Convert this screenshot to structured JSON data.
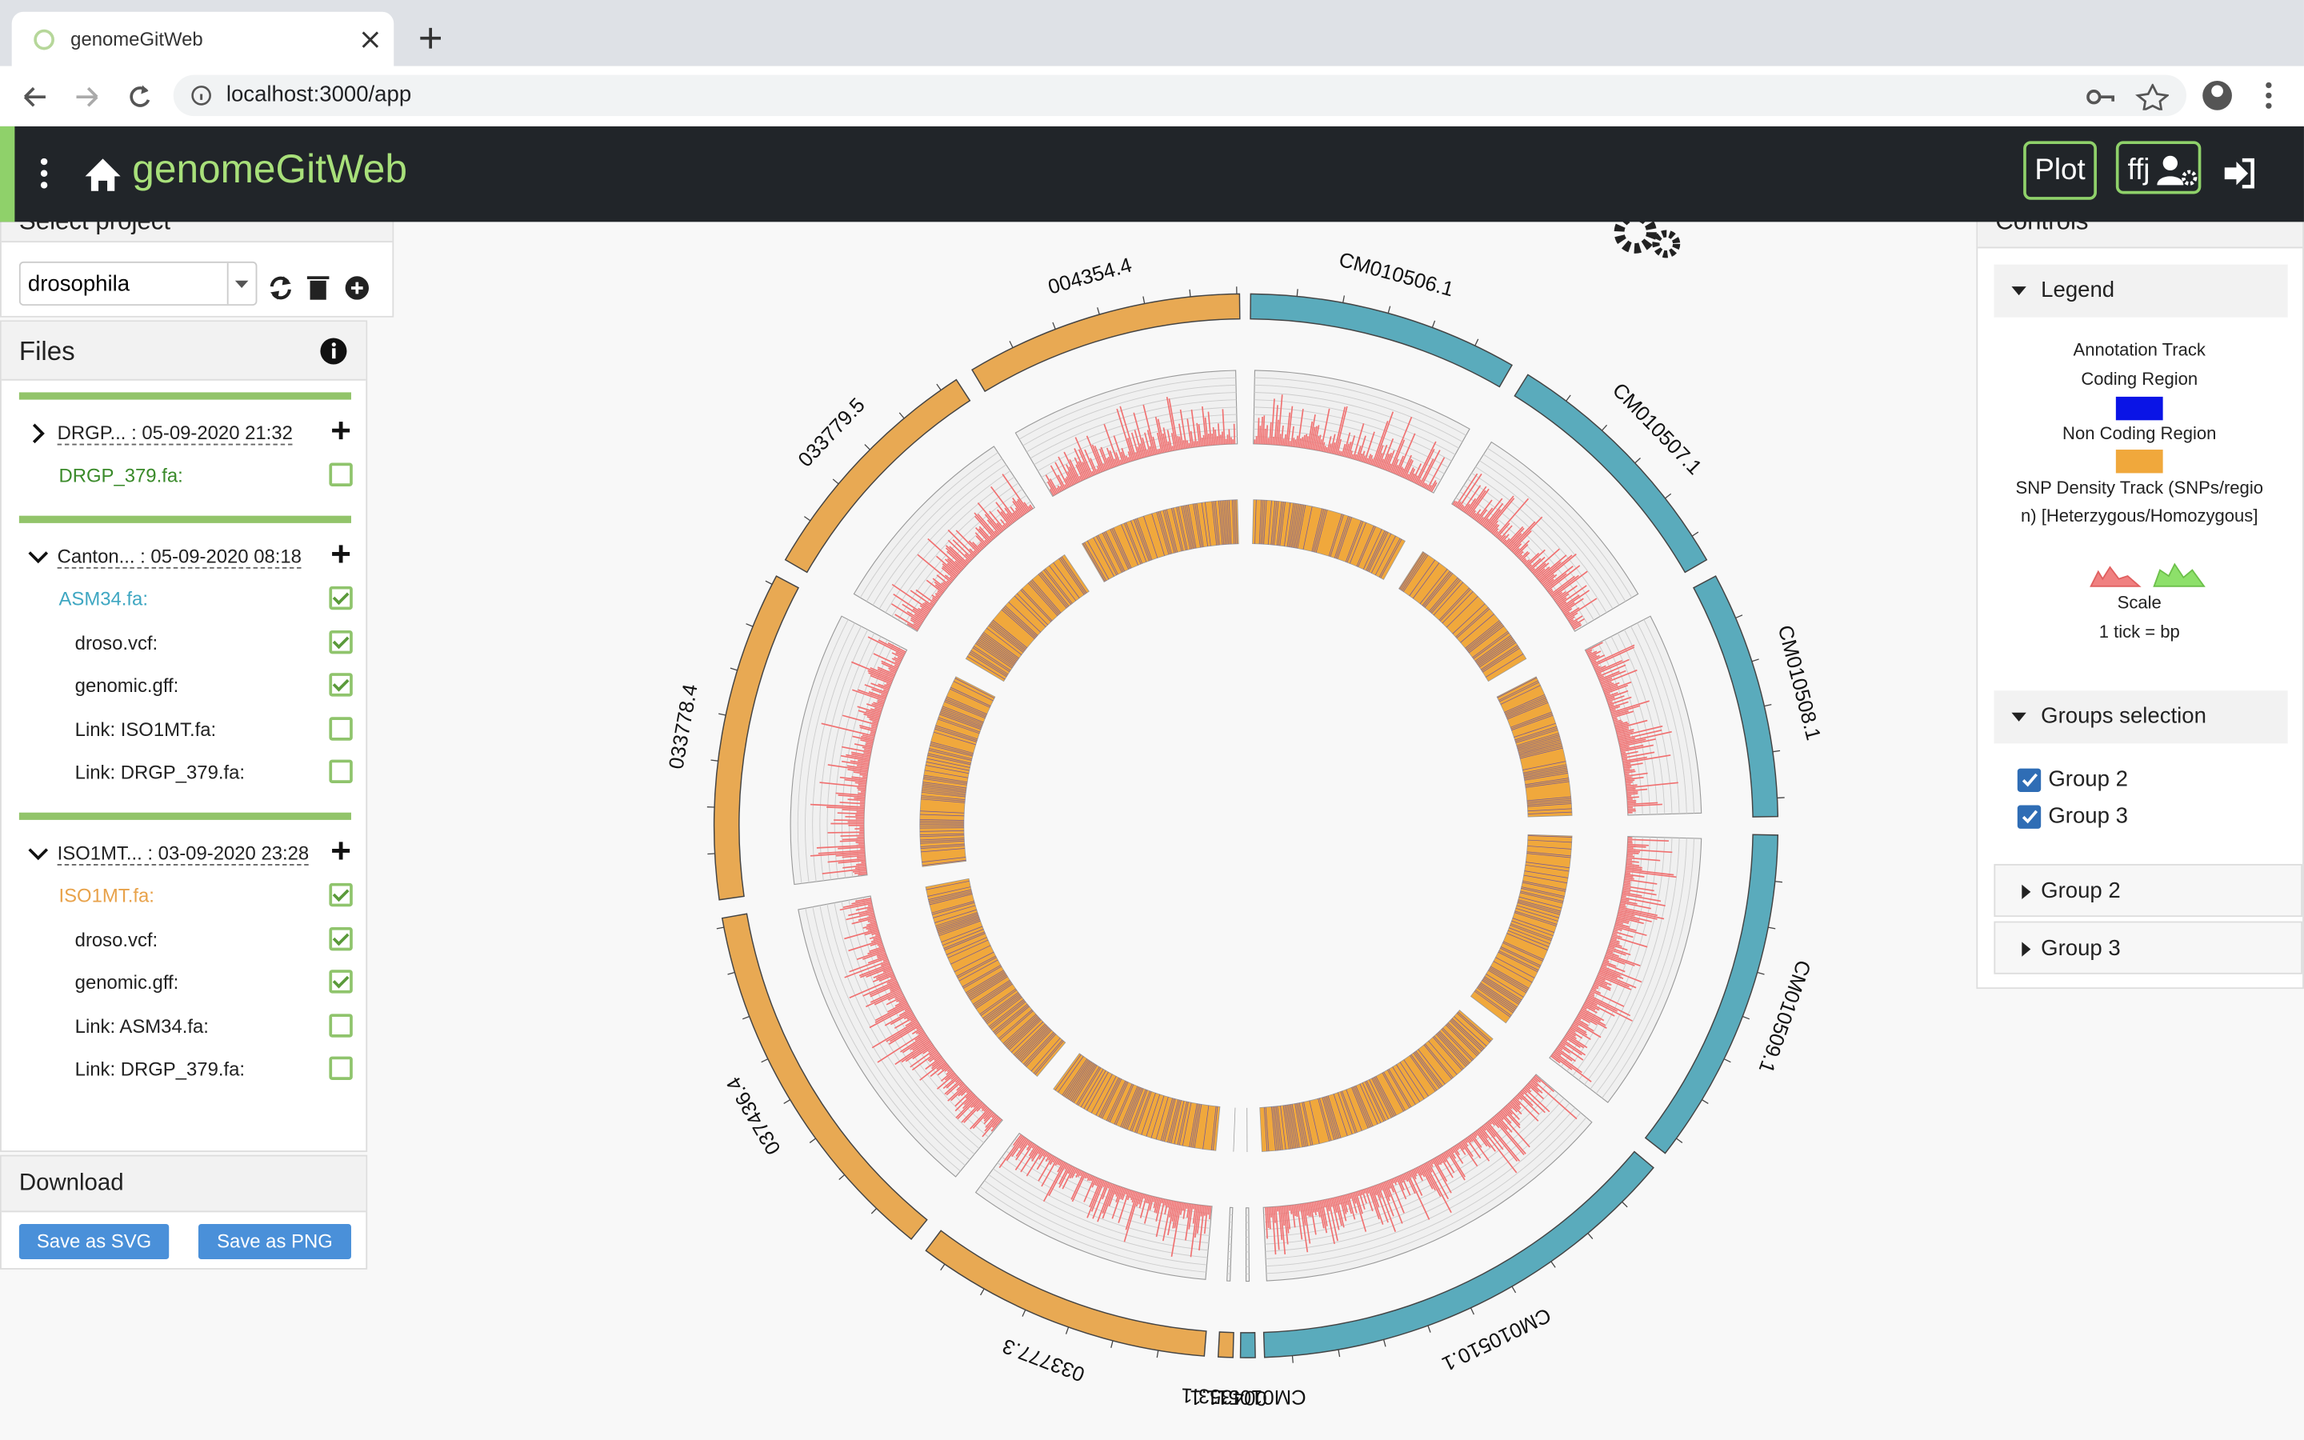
{
  "browser": {
    "tab_title": "genomeGitWeb",
    "url": "localhost:3000/app"
  },
  "app": {
    "title": "genomeGitWeb",
    "plot_button": "Plot",
    "user_button": "ffj"
  },
  "project": {
    "label": "Select project",
    "value": "drosophila"
  },
  "files": {
    "title": "Files",
    "groups": [
      {
        "header": "DRGP... : 05-09-2020 21:32",
        "expanded": false,
        "items": [
          {
            "label": "DRGP_379.fa:",
            "checked": false,
            "kind": "genome",
            "color": "#3a8a2a"
          }
        ]
      },
      {
        "header": "Canton... : 05-09-2020 08:18",
        "expanded": true,
        "items": [
          {
            "label": "ASM34.fa:",
            "checked": true,
            "kind": "genome",
            "color": "#3fa7c2"
          },
          {
            "label": "droso.vcf:",
            "checked": true,
            "kind": "file"
          },
          {
            "label": "genomic.gff:",
            "checked": true,
            "kind": "file"
          },
          {
            "label": "Link: ISO1MT.fa:",
            "checked": false,
            "kind": "file"
          },
          {
            "label": "Link: DRGP_379.fa:",
            "checked": false,
            "kind": "file"
          }
        ]
      },
      {
        "header": "ISO1MT... : 03-09-2020 23:28",
        "expanded": true,
        "items": [
          {
            "label": "ISO1MT.fa:",
            "checked": true,
            "kind": "genome",
            "color": "#e8a24a"
          },
          {
            "label": "droso.vcf:",
            "checked": true,
            "kind": "file"
          },
          {
            "label": "genomic.gff:",
            "checked": true,
            "kind": "file"
          },
          {
            "label": "Link: ASM34.fa:",
            "checked": false,
            "kind": "file"
          },
          {
            "label": "Link: DRGP_379.fa:",
            "checked": false,
            "kind": "file"
          }
        ]
      }
    ]
  },
  "download": {
    "title": "Download",
    "buttons": [
      "Save as SVG",
      "Save as PNG"
    ]
  },
  "plot": {
    "chromosomes": [
      {
        "label": "CM010506.1",
        "color": "#5aabbc"
      },
      {
        "label": "CM010507.1",
        "color": "#5aabbc"
      },
      {
        "label": "CM010508.1",
        "color": "#5aabbc"
      },
      {
        "label": "CM010509.1",
        "color": "#5aabbc"
      },
      {
        "label": "CM010510.1",
        "color": "#5aabbc"
      },
      {
        "label": "CM010511.1",
        "color": "#5aabbc"
      },
      {
        "label": "004353.1",
        "color": "#e8a953"
      },
      {
        "label": "033777.3",
        "color": "#e8a953"
      },
      {
        "label": "037436.4",
        "color": "#e8a953"
      },
      {
        "label": "033778.4",
        "color": "#e8a953"
      },
      {
        "label": "033779.5",
        "color": "#e8a953"
      },
      {
        "label": "004354.4",
        "color": "#e8a953"
      }
    ]
  },
  "controls": {
    "title": "Controls",
    "legend": {
      "title": "Legend",
      "annotation_title": "Annotation Track",
      "coding": "Coding Region",
      "coding_color": "#0a14e6",
      "noncoding": "Non Coding Region",
      "noncoding_color": "#f0a83c",
      "snp": "SNP Density Track (SNPs/region) [Heterzygous/Homozygous]",
      "scale": "Scale",
      "tick": "1 tick = bp"
    },
    "groups_selection": {
      "title": "Groups selection",
      "items": [
        {
          "label": "Group 2",
          "checked": true
        },
        {
          "label": "Group 3",
          "checked": true
        }
      ]
    },
    "group_panels": [
      "Group 2",
      "Group 3"
    ]
  }
}
